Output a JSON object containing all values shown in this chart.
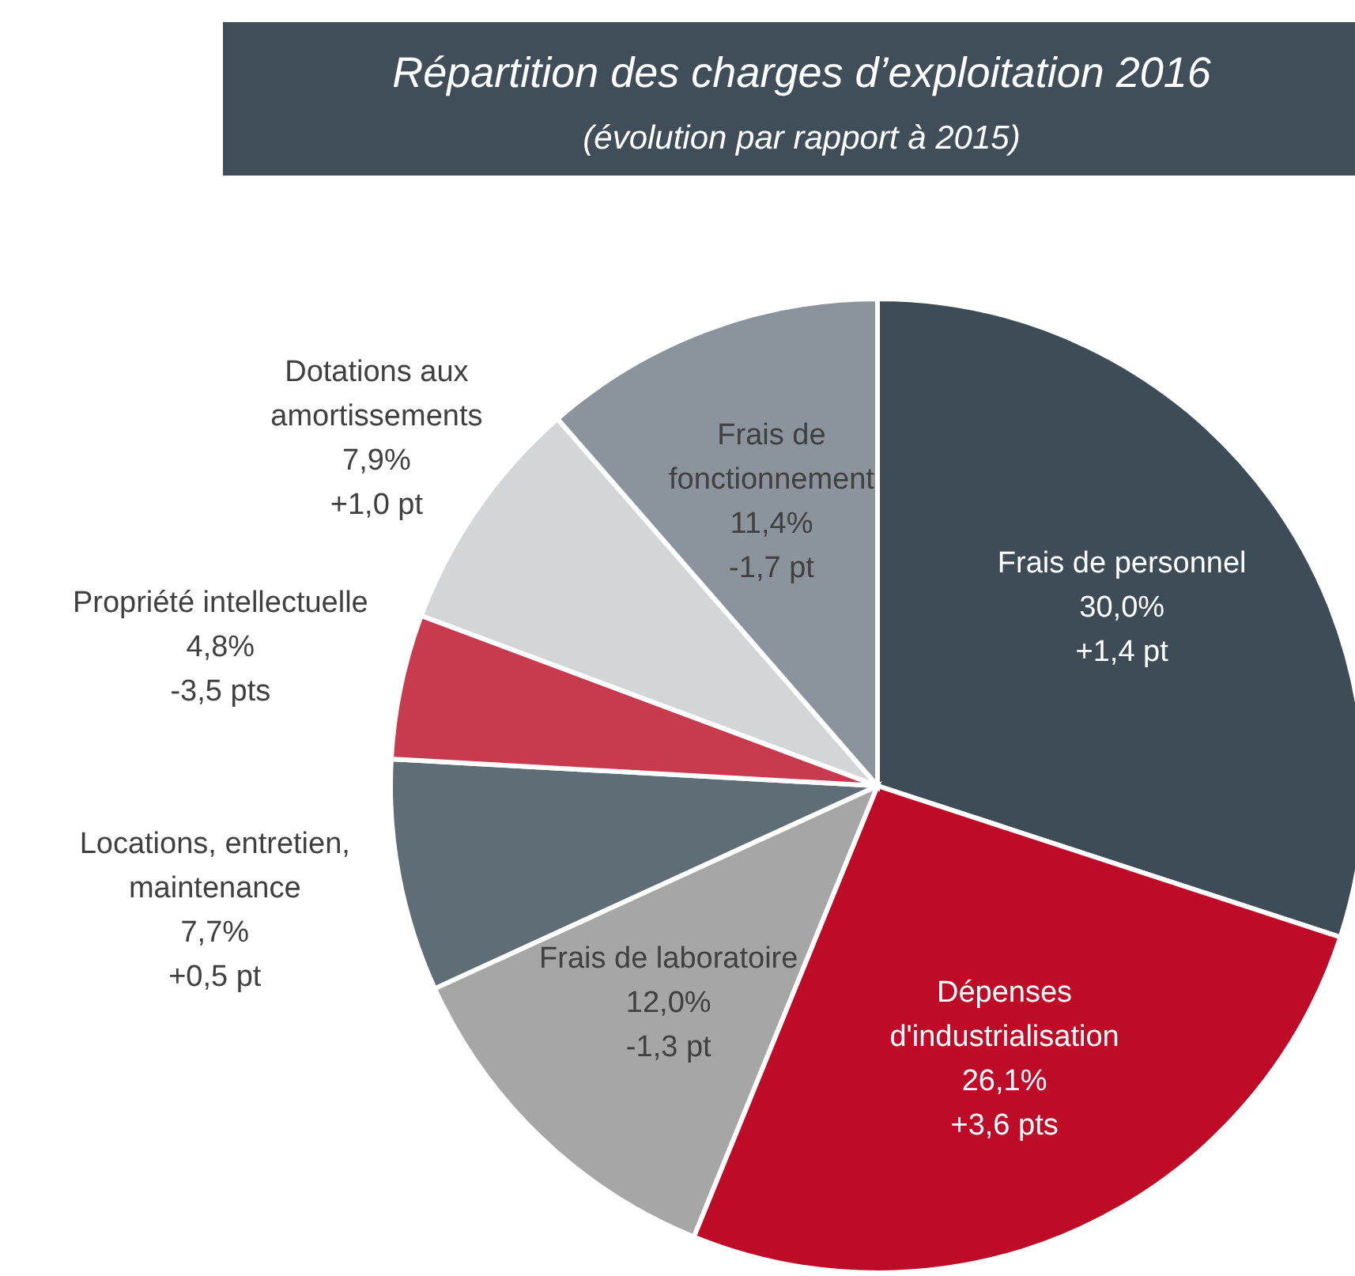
{
  "chart_data": {
    "type": "pie",
    "title": "Répartition des charges d’exploitation 2016",
    "subtitle": "(évolution par rapport à 2015)",
    "categories": [
      "Frais de personnel",
      "Dépenses d'industrialisation",
      "Frais de laboratoire",
      "Locations, entretien, maintenance",
      "Propriété intellectuelle",
      "Dotations aux amortissements",
      "Frais de fonctionnement"
    ],
    "values": [
      30.0,
      26.1,
      12.0,
      7.7,
      4.8,
      7.9,
      11.4
    ],
    "value_labels": [
      "30,0%",
      "26,1%",
      "12,0%",
      "7,7%",
      "4,8%",
      "7,9%",
      "11,4%"
    ],
    "annotations": [
      "+1,4 pt",
      "+3,6 pts",
      "-1,3 pt",
      "+0,5 pt",
      "-3,5 pts",
      "+1,0 pt",
      "-1,7 pt"
    ],
    "colors": [
      "#3d4c57",
      "#be0b27",
      "#a6a6a6",
      "#5e6d76",
      "#c83a4e",
      "#d4d5d7",
      "#8b949c"
    ]
  }
}
